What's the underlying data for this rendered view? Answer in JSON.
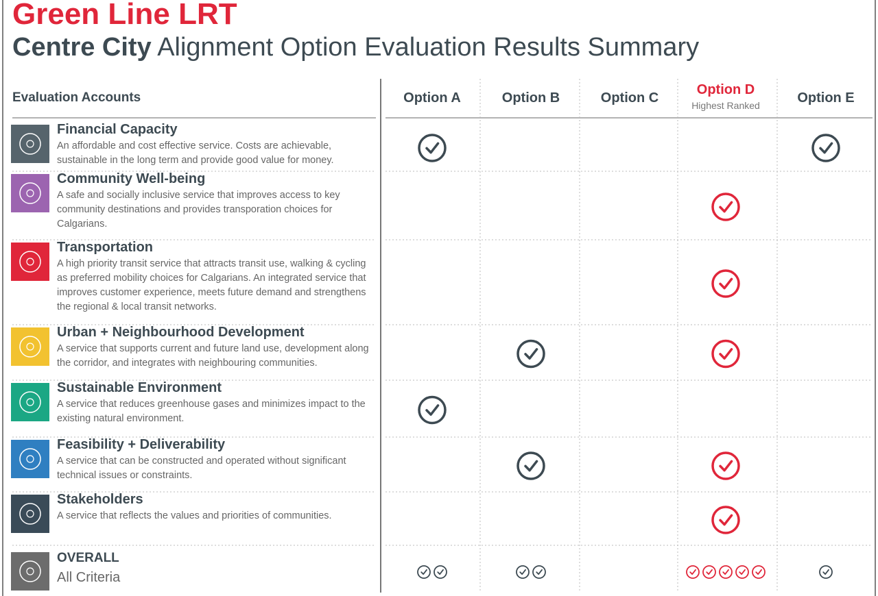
{
  "header": {
    "title": "Green Line LRT",
    "subtitle_bold": "Centre City",
    "subtitle": "Alignment Option Evaluation Results Summary"
  },
  "table": {
    "account_header": "Evaluation Accounts",
    "options": [
      {
        "name": "Option A",
        "color": "#3d4a52"
      },
      {
        "name": "Option B",
        "color": "#3d4a52"
      },
      {
        "name": "Option C",
        "color": "#3d4a52"
      },
      {
        "name": "Option D",
        "note": "Highest Ranked",
        "color": "#e0263a"
      },
      {
        "name": "Option E",
        "color": "#3d4a52"
      }
    ],
    "rows": [
      {
        "title": "Financial Capacity",
        "description": "An affordable and cost effective service. Costs are achievable, sustainable in the long term and provide good value for money.",
        "color": "#56646c",
        "checks": [
          true,
          false,
          false,
          false,
          true
        ]
      },
      {
        "title": "Community Well-being",
        "description": "A safe and socially inclusive service that improves access to key community destinations and provides transporation choices for Calgarians.",
        "color": "#9c64b0",
        "checks": [
          false,
          false,
          false,
          true,
          false
        ]
      },
      {
        "title": "Transportation",
        "description": "A high priority transit service that attracts transit use, walking & cycling as preferred mobility choices for Calgarians. An integrated service that improves customer experience, meets future demand and strengthens the regional & local transit networks.",
        "color": "#e0263a",
        "checks": [
          false,
          false,
          false,
          true,
          false
        ]
      },
      {
        "title": "Urban + Neighbourhood Development",
        "description": "A service that supports current and future land use, development along the corridor, and integrates with neighbouring communities.",
        "color": "#f2c230",
        "checks": [
          false,
          true,
          false,
          true,
          false
        ]
      },
      {
        "title": "Sustainable Environment",
        "description": "A service that reduces greenhouse gases and minimizes impact to the existing natural environment.",
        "color": "#1ba784",
        "checks": [
          true,
          false,
          false,
          false,
          false
        ]
      },
      {
        "title": "Feasibility + Deliverability",
        "description": "A service that can be constructed and operated without significant technical issues or constraints.",
        "color": "#2f7fc1",
        "checks": [
          false,
          true,
          false,
          true,
          false
        ]
      },
      {
        "title": "Stakeholders",
        "description": "A service that reflects the values and priorities of communities.",
        "color": "#3a4b58",
        "checks": [
          false,
          false,
          false,
          true,
          false
        ]
      }
    ],
    "overall": {
      "title": "OVERALL",
      "subtitle": "All Criteria",
      "color": "#6c6c6c",
      "counts": [
        2,
        2,
        0,
        5,
        1
      ]
    }
  }
}
